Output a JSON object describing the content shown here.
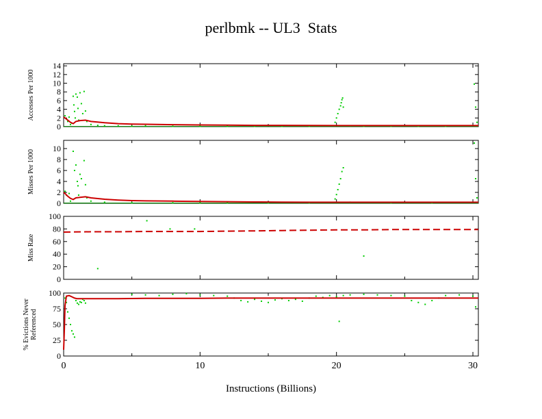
{
  "title": "perlbmk -- UL3  Stats",
  "xlabel": "Instructions (Billions)",
  "colors": {
    "scatter": "#00cc00",
    "mean": "#cc0000",
    "baseline": "#008000",
    "axis": "#000000"
  },
  "chart_data": [
    {
      "type": "scatter",
      "ylabel": "Accesses Per 1000",
      "xlim": [
        0,
        30.4
      ],
      "ylim": [
        0,
        14.5
      ],
      "yticks": [
        "0",
        "2",
        "4",
        "6",
        "8",
        "10",
        "12",
        "14"
      ],
      "yticks_v": [
        0,
        2,
        4,
        6,
        8,
        10,
        12,
        14
      ],
      "xticks": [
        "0",
        "10",
        "20",
        "30"
      ],
      "xticks_v": [
        0,
        10,
        20,
        30
      ],
      "series": [
        {
          "kind": "scatter",
          "points": [
            [
              0.1,
              2.5
            ],
            [
              0.2,
              1.8
            ],
            [
              0.3,
              1.2
            ],
            [
              0.4,
              2.2
            ],
            [
              0.5,
              0.5
            ],
            [
              0.6,
              0.8
            ],
            [
              0.7,
              7.0
            ],
            [
              0.75,
              5.0
            ],
            [
              0.8,
              3.5
            ],
            [
              0.85,
              2.0
            ],
            [
              0.9,
              7.5
            ],
            [
              1.0,
              6.8
            ],
            [
              1.05,
              4.2
            ],
            [
              1.1,
              1.5
            ],
            [
              1.2,
              7.8
            ],
            [
              1.3,
              5.3
            ],
            [
              1.4,
              3.0
            ],
            [
              1.5,
              8.1
            ],
            [
              1.6,
              3.6
            ],
            [
              1.7,
              1.2
            ],
            [
              2.0,
              0.5
            ],
            [
              2.5,
              0.3
            ],
            [
              3.0,
              0.2
            ],
            [
              4.0,
              0.2
            ],
            [
              5.0,
              0.1
            ],
            [
              6.0,
              0.2
            ],
            [
              8.0,
              0.1
            ],
            [
              10.0,
              0.1
            ],
            [
              12.0,
              0.1
            ],
            [
              14.0,
              0.1
            ],
            [
              16.0,
              0.1
            ],
            [
              18.0,
              0.1
            ],
            [
              19.9,
              1.0
            ],
            [
              20.0,
              2.0
            ],
            [
              20.1,
              3.0
            ],
            [
              20.2,
              4.0
            ],
            [
              20.3,
              4.8
            ],
            [
              20.35,
              5.5
            ],
            [
              20.4,
              6.2
            ],
            [
              20.45,
              6.6
            ],
            [
              20.5,
              4.5
            ],
            [
              21.0,
              0.2
            ],
            [
              22.0,
              0.1
            ],
            [
              24.0,
              0.1
            ],
            [
              26.0,
              0.1
            ],
            [
              28.0,
              0.1
            ],
            [
              30.1,
              9.8
            ],
            [
              30.2,
              4.5
            ],
            [
              30.3,
              1.0
            ]
          ]
        },
        {
          "kind": "line",
          "points": [
            [
              0,
              2.2
            ],
            [
              0.1,
              2.0
            ],
            [
              0.3,
              1.5
            ],
            [
              0.5,
              1.0
            ],
            [
              0.7,
              0.7
            ],
            [
              0.9,
              1.2
            ],
            [
              1.2,
              1.4
            ],
            [
              1.6,
              1.5
            ],
            [
              2.0,
              1.2
            ],
            [
              3.0,
              0.9
            ],
            [
              4.0,
              0.7
            ],
            [
              5.0,
              0.6
            ],
            [
              6.0,
              0.55
            ],
            [
              8.0,
              0.45
            ],
            [
              10.0,
              0.4
            ],
            [
              12.0,
              0.35
            ],
            [
              14.0,
              0.3
            ],
            [
              16.0,
              0.3
            ],
            [
              18.0,
              0.28
            ],
            [
              20.0,
              0.25
            ],
            [
              22.0,
              0.25
            ],
            [
              25.0,
              0.25
            ],
            [
              28.0,
              0.25
            ],
            [
              30.4,
              0.25
            ]
          ]
        }
      ]
    },
    {
      "type": "scatter",
      "ylabel": "Misses Per 1000",
      "xlim": [
        0,
        30.4
      ],
      "ylim": [
        0,
        11.5
      ],
      "yticks": [
        "0",
        "2",
        "4",
        "6",
        "8",
        "10"
      ],
      "yticks_v": [
        0,
        2,
        4,
        6,
        8,
        10
      ],
      "xticks": [
        "0",
        "10",
        "20",
        "30"
      ],
      "xticks_v": [
        0,
        10,
        20,
        30
      ],
      "series": [
        {
          "kind": "scatter",
          "points": [
            [
              0.1,
              2.2
            ],
            [
              0.2,
              1.5
            ],
            [
              0.4,
              1.8
            ],
            [
              0.5,
              0.4
            ],
            [
              0.7,
              9.5
            ],
            [
              0.8,
              6.0
            ],
            [
              0.9,
              7.0
            ],
            [
              1.0,
              4.0
            ],
            [
              1.05,
              3.2
            ],
            [
              1.1,
              1.5
            ],
            [
              1.2,
              5.3
            ],
            [
              1.3,
              4.5
            ],
            [
              1.5,
              7.8
            ],
            [
              1.6,
              3.4
            ],
            [
              1.7,
              1.0
            ],
            [
              2.0,
              0.4
            ],
            [
              3.0,
              0.2
            ],
            [
              5.0,
              0.1
            ],
            [
              8.0,
              0.1
            ],
            [
              10.0,
              0.1
            ],
            [
              12.0,
              0.1
            ],
            [
              15.0,
              0.1
            ],
            [
              18.0,
              0.1
            ],
            [
              19.9,
              0.8
            ],
            [
              20.0,
              1.6
            ],
            [
              20.1,
              2.5
            ],
            [
              20.2,
              3.5
            ],
            [
              20.3,
              4.5
            ],
            [
              20.4,
              5.8
            ],
            [
              20.5,
              6.5
            ],
            [
              21.0,
              0.2
            ],
            [
              24.0,
              0.1
            ],
            [
              27.0,
              0.1
            ],
            [
              30.1,
              11.0
            ],
            [
              30.2,
              4.5
            ],
            [
              30.3,
              1.0
            ]
          ]
        },
        {
          "kind": "line",
          "points": [
            [
              0,
              2.0
            ],
            [
              0.1,
              1.8
            ],
            [
              0.3,
              1.3
            ],
            [
              0.5,
              0.9
            ],
            [
              0.7,
              0.7
            ],
            [
              0.9,
              1.0
            ],
            [
              1.2,
              1.1
            ],
            [
              1.6,
              1.2
            ],
            [
              2.0,
              1.0
            ],
            [
              3.0,
              0.75
            ],
            [
              4.0,
              0.6
            ],
            [
              5.0,
              0.5
            ],
            [
              6.0,
              0.45
            ],
            [
              8.0,
              0.4
            ],
            [
              10.0,
              0.35
            ],
            [
              12.0,
              0.3
            ],
            [
              14.0,
              0.25
            ],
            [
              16.0,
              0.22
            ],
            [
              18.0,
              0.2
            ],
            [
              20.0,
              0.2
            ],
            [
              24.0,
              0.2
            ],
            [
              28.0,
              0.2
            ],
            [
              30.4,
              0.2
            ]
          ]
        }
      ]
    },
    {
      "type": "scatter",
      "ylabel": "Miss Rate",
      "xlim": [
        0,
        30.4
      ],
      "ylim": [
        0,
        100
      ],
      "yticks": [
        "0",
        "20",
        "40",
        "60",
        "80",
        "100"
      ],
      "yticks_v": [
        0,
        20,
        40,
        60,
        80,
        100
      ],
      "xticks": [
        "0",
        "10",
        "20",
        "30"
      ],
      "xticks_v": [
        0,
        10,
        20,
        30
      ],
      "series": [
        {
          "kind": "scatter",
          "points": [
            [
              6.1,
              93
            ],
            [
              7.8,
              80
            ],
            [
              9.6,
              80
            ],
            [
              2.5,
              17
            ],
            [
              22.0,
              37
            ]
          ]
        },
        {
          "kind": "dashed",
          "points": [
            [
              0,
              75
            ],
            [
              2,
              75.5
            ],
            [
              4,
              75.5
            ],
            [
              6,
              76
            ],
            [
              8,
              76
            ],
            [
              10,
              76
            ],
            [
              12,
              76.5
            ],
            [
              14,
              77
            ],
            [
              16,
              77.5
            ],
            [
              18,
              78
            ],
            [
              20,
              78.5
            ],
            [
              22,
              78.5
            ],
            [
              24,
              79
            ],
            [
              26,
              79
            ],
            [
              28,
              79
            ],
            [
              30.4,
              79
            ]
          ]
        }
      ]
    },
    {
      "type": "scatter",
      "ylabel": "% Evictions Never Referenced",
      "xlim": [
        0,
        30.4
      ],
      "ylim": [
        0,
        100
      ],
      "yticks": [
        "0",
        "25",
        "50",
        "75",
        "100"
      ],
      "yticks_v": [
        0,
        25,
        50,
        75,
        100
      ],
      "xticks": [
        "0",
        "10",
        "20",
        "30"
      ],
      "xticks_v": [
        0,
        10,
        20,
        30
      ],
      "series": [
        {
          "kind": "scatter",
          "points": [
            [
              0.1,
              92
            ],
            [
              0.2,
              85
            ],
            [
              0.3,
              70
            ],
            [
              0.4,
              60
            ],
            [
              0.5,
              50
            ],
            [
              0.6,
              40
            ],
            [
              0.7,
              35
            ],
            [
              0.8,
              30
            ],
            [
              0.9,
              88
            ],
            [
              1.0,
              84
            ],
            [
              1.1,
              82
            ],
            [
              1.2,
              86
            ],
            [
              1.3,
              85
            ],
            [
              1.4,
              90
            ],
            [
              1.5,
              88
            ],
            [
              1.6,
              84
            ],
            [
              5.0,
              98
            ],
            [
              6.0,
              97
            ],
            [
              7.0,
              96
            ],
            [
              8.0,
              98
            ],
            [
              9.0,
              99
            ],
            [
              10.0,
              97
            ],
            [
              11.0,
              96
            ],
            [
              12.0,
              95
            ],
            [
              12.5,
              92
            ],
            [
              13.0,
              88
            ],
            [
              13.5,
              86
            ],
            [
              14.0,
              90
            ],
            [
              14.5,
              87
            ],
            [
              15.0,
              85
            ],
            [
              15.5,
              89
            ],
            [
              16.0,
              91
            ],
            [
              16.5,
              88
            ],
            [
              17.0,
              90
            ],
            [
              17.5,
              87
            ],
            [
              18.0,
              92
            ],
            [
              18.5,
              95
            ],
            [
              19.0,
              93
            ],
            [
              19.5,
              96
            ],
            [
              20.0,
              94
            ],
            [
              20.2,
              55
            ],
            [
              20.5,
              96
            ],
            [
              21.0,
              97
            ],
            [
              22.0,
              98
            ],
            [
              23.0,
              97
            ],
            [
              24.0,
              96
            ],
            [
              25.0,
              95
            ],
            [
              25.5,
              88
            ],
            [
              26.0,
              85
            ],
            [
              26.5,
              82
            ],
            [
              27.0,
              88
            ],
            [
              27.5,
              92
            ],
            [
              28.0,
              96
            ],
            [
              29.0,
              97
            ],
            [
              30.0,
              95
            ],
            [
              30.2,
              78
            ]
          ]
        },
        {
          "kind": "line",
          "points": [
            [
              0,
              10
            ],
            [
              0.05,
              40
            ],
            [
              0.1,
              80
            ],
            [
              0.2,
              95
            ],
            [
              0.4,
              96
            ],
            [
              0.6,
              94
            ],
            [
              0.8,
              92
            ],
            [
              1.0,
              91
            ],
            [
              1.5,
              91
            ],
            [
              2.0,
              91
            ],
            [
              4.0,
              91
            ],
            [
              6.0,
              91.5
            ],
            [
              8.0,
              91.5
            ],
            [
              10.0,
              91.5
            ],
            [
              12.0,
              92
            ],
            [
              14.0,
              92
            ],
            [
              16.0,
              92
            ],
            [
              18.0,
              92
            ],
            [
              20.0,
              92
            ],
            [
              22.0,
              92
            ],
            [
              24.0,
              92
            ],
            [
              26.0,
              92
            ],
            [
              28.0,
              92
            ],
            [
              30.4,
              92
            ]
          ]
        }
      ]
    }
  ]
}
